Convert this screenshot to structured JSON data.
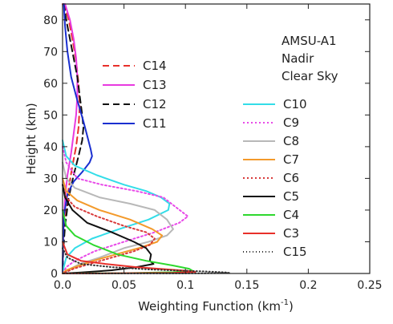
{
  "chart_data": {
    "type": "line",
    "xlabel": "Weighting Function (km",
    "xlabel_sup": "-1",
    "xlabel_end": ")",
    "ylabel": "Height (km)",
    "xlim": [
      0,
      0.25
    ],
    "ylim": [
      0,
      85
    ],
    "xticks": [
      0.0,
      0.05,
      0.1,
      0.15,
      0.2,
      0.25
    ],
    "xtick_labels": [
      "0.0",
      "0.05",
      "0.1",
      "0.15",
      "0.2",
      "0.25"
    ],
    "yticks": [
      0,
      10,
      20,
      30,
      40,
      50,
      60,
      70,
      80
    ],
    "ytick_labels": [
      "0",
      "10",
      "20",
      "30",
      "40",
      "50",
      "60",
      "70",
      "80"
    ],
    "annotation": [
      "AMSU-A1",
      "Nadir",
      "Clear Sky"
    ],
    "legend_left": [
      "C14",
      "C13",
      "C12",
      "C11"
    ],
    "legend_right": [
      "C10",
      "C9",
      "C8",
      "C7",
      "C6",
      "C5",
      "C4",
      "C3",
      "C15"
    ],
    "series": [
      {
        "name": "C14",
        "color": "#e8302a",
        "dash": "8,5",
        "points": [
          [
            0.0,
            85
          ],
          [
            0.002,
            84
          ],
          [
            0.005,
            80
          ],
          [
            0.008,
            74
          ],
          [
            0.011,
            67
          ],
          [
            0.013,
            60
          ],
          [
            0.014,
            53
          ],
          [
            0.013,
            46
          ],
          [
            0.011,
            40
          ],
          [
            0.008,
            34
          ],
          [
            0.005,
            27
          ],
          [
            0.003,
            20
          ],
          [
            0.001,
            12
          ],
          [
            0.0003,
            5
          ],
          [
            0,
            0
          ]
        ]
      },
      {
        "name": "C13",
        "color": "#e83ae0",
        "dash": "",
        "points": [
          [
            0.002,
            85
          ],
          [
            0.006,
            80
          ],
          [
            0.009,
            74
          ],
          [
            0.011,
            68
          ],
          [
            0.012,
            62
          ],
          [
            0.012,
            56
          ],
          [
            0.011,
            50
          ],
          [
            0.009,
            44
          ],
          [
            0.007,
            38
          ],
          [
            0.004,
            31
          ],
          [
            0.002,
            24
          ],
          [
            0.001,
            16
          ],
          [
            0.0003,
            8
          ],
          [
            0,
            0
          ]
        ]
      },
      {
        "name": "C12",
        "color": "#111111",
        "dash": "8,5",
        "points": [
          [
            0.001,
            85
          ],
          [
            0.003,
            80
          ],
          [
            0.006,
            74
          ],
          [
            0.009,
            68
          ],
          [
            0.012,
            62
          ],
          [
            0.014,
            56
          ],
          [
            0.016,
            50
          ],
          [
            0.017,
            46
          ],
          [
            0.016,
            42
          ],
          [
            0.013,
            37
          ],
          [
            0.009,
            31
          ],
          [
            0.005,
            24
          ],
          [
            0.002,
            15
          ],
          [
            0.0005,
            7
          ],
          [
            0,
            0
          ]
        ]
      },
      {
        "name": "C11",
        "color": "#1a2fd0",
        "dash": "",
        "points": [
          [
            0.001,
            85
          ],
          [
            0.002,
            78
          ],
          [
            0.004,
            70
          ],
          [
            0.007,
            62
          ],
          [
            0.011,
            56
          ],
          [
            0.014,
            52
          ],
          [
            0.017,
            48
          ],
          [
            0.019,
            45
          ],
          [
            0.021,
            42
          ],
          [
            0.023,
            39
          ],
          [
            0.024,
            37
          ],
          [
            0.022,
            35
          ],
          [
            0.016,
            32
          ],
          [
            0.009,
            29
          ],
          [
            0.004,
            25
          ],
          [
            0.001,
            18
          ],
          [
            0.0003,
            10
          ],
          [
            0,
            0
          ]
        ]
      },
      {
        "name": "C10",
        "color": "#33dde8",
        "dash": "",
        "points": [
          [
            0,
            42
          ],
          [
            0.003,
            37
          ],
          [
            0.01,
            34
          ],
          [
            0.028,
            31
          ],
          [
            0.05,
            28
          ],
          [
            0.068,
            26
          ],
          [
            0.08,
            24
          ],
          [
            0.087,
            22
          ],
          [
            0.086,
            20
          ],
          [
            0.07,
            17
          ],
          [
            0.046,
            14
          ],
          [
            0.024,
            11
          ],
          [
            0.01,
            8
          ],
          [
            0.003,
            5
          ],
          [
            0.001,
            2
          ],
          [
            0,
            0
          ]
        ]
      },
      {
        "name": "C9",
        "color": "#e84ae8",
        "dash": "2,3",
        "points": [
          [
            0,
            40
          ],
          [
            0.003,
            35
          ],
          [
            0.012,
            30
          ],
          [
            0.032,
            28
          ],
          [
            0.06,
            26
          ],
          [
            0.082,
            24
          ],
          [
            0.092,
            21
          ],
          [
            0.102,
            18
          ],
          [
            0.095,
            16
          ],
          [
            0.075,
            13
          ],
          [
            0.05,
            10
          ],
          [
            0.026,
            7
          ],
          [
            0.01,
            4
          ],
          [
            0.003,
            2
          ],
          [
            0,
            0
          ]
        ]
      },
      {
        "name": "C8",
        "color": "#b8b8b8",
        "dash": "",
        "points": [
          [
            0,
            35
          ],
          [
            0.003,
            30
          ],
          [
            0.01,
            27
          ],
          [
            0.03,
            24
          ],
          [
            0.055,
            22
          ],
          [
            0.075,
            20
          ],
          [
            0.085,
            17
          ],
          [
            0.09,
            14
          ],
          [
            0.085,
            12
          ],
          [
            0.07,
            10
          ],
          [
            0.05,
            8
          ],
          [
            0.03,
            5
          ],
          [
            0.014,
            3
          ],
          [
            0.004,
            1
          ],
          [
            0,
            0
          ]
        ]
      },
      {
        "name": "C7",
        "color": "#f39a2b",
        "dash": "",
        "points": [
          [
            0,
            30
          ],
          [
            0.003,
            26
          ],
          [
            0.012,
            23
          ],
          [
            0.03,
            20
          ],
          [
            0.055,
            17
          ],
          [
            0.073,
            14
          ],
          [
            0.081,
            12
          ],
          [
            0.077,
            10
          ],
          [
            0.062,
            8
          ],
          [
            0.043,
            6
          ],
          [
            0.025,
            4
          ],
          [
            0.01,
            2
          ],
          [
            0.003,
            1
          ],
          [
            0,
            0
          ]
        ]
      },
      {
        "name": "C6",
        "color": "#d83a3a",
        "dash": "2,3",
        "points": [
          [
            0,
            28
          ],
          [
            0.003,
            24
          ],
          [
            0.01,
            21
          ],
          [
            0.028,
            18
          ],
          [
            0.05,
            15
          ],
          [
            0.068,
            13
          ],
          [
            0.075,
            11
          ],
          [
            0.071,
            9
          ],
          [
            0.058,
            7
          ],
          [
            0.04,
            5
          ],
          [
            0.022,
            3
          ],
          [
            0.009,
            1.5
          ],
          [
            0.003,
            0.5
          ],
          [
            0,
            0
          ]
        ]
      },
      {
        "name": "C5",
        "color": "#111111",
        "dash": "",
        "points": [
          [
            0,
            28
          ],
          [
            0.002,
            24
          ],
          [
            0.008,
            20
          ],
          [
            0.02,
            16
          ],
          [
            0.04,
            13
          ],
          [
            0.058,
            10
          ],
          [
            0.068,
            8
          ],
          [
            0.072,
            6
          ],
          [
            0.071,
            4
          ],
          [
            0.074,
            3
          ],
          [
            0.06,
            2
          ],
          [
            0.04,
            1
          ],
          [
            0.015,
            0.3
          ],
          [
            0,
            0
          ]
        ]
      },
      {
        "name": "C4",
        "color": "#2ed82e",
        "dash": "",
        "points": [
          [
            0,
            20
          ],
          [
            0.003,
            15
          ],
          [
            0.01,
            12
          ],
          [
            0.025,
            9
          ],
          [
            0.045,
            6
          ],
          [
            0.068,
            4
          ],
          [
            0.09,
            2.5
          ],
          [
            0.103,
            1.5
          ],
          [
            0.106,
            0.8
          ],
          [
            0.09,
            0.4
          ],
          [
            0.05,
            0.1
          ],
          [
            0,
            0
          ]
        ]
      },
      {
        "name": "C3",
        "color": "#e8302a",
        "dash": "",
        "points": [
          [
            0,
            10
          ],
          [
            0.004,
            6
          ],
          [
            0.015,
            4
          ],
          [
            0.035,
            3
          ],
          [
            0.06,
            2
          ],
          [
            0.085,
            1.3
          ],
          [
            0.102,
            0.8
          ],
          [
            0.108,
            0.5
          ],
          [
            0.09,
            0.2
          ],
          [
            0.04,
            0.05
          ],
          [
            0,
            0
          ]
        ]
      },
      {
        "name": "C15",
        "color": "#333333",
        "dash": "1,3",
        "points": [
          [
            0,
            8
          ],
          [
            0.004,
            5
          ],
          [
            0.015,
            3
          ],
          [
            0.04,
            2
          ],
          [
            0.07,
            1.3
          ],
          [
            0.095,
            0.9
          ],
          [
            0.118,
            0.6
          ],
          [
            0.132,
            0.35
          ],
          [
            0.136,
            0.15
          ],
          [
            0.11,
            0.05
          ],
          [
            0,
            0
          ]
        ]
      }
    ]
  }
}
